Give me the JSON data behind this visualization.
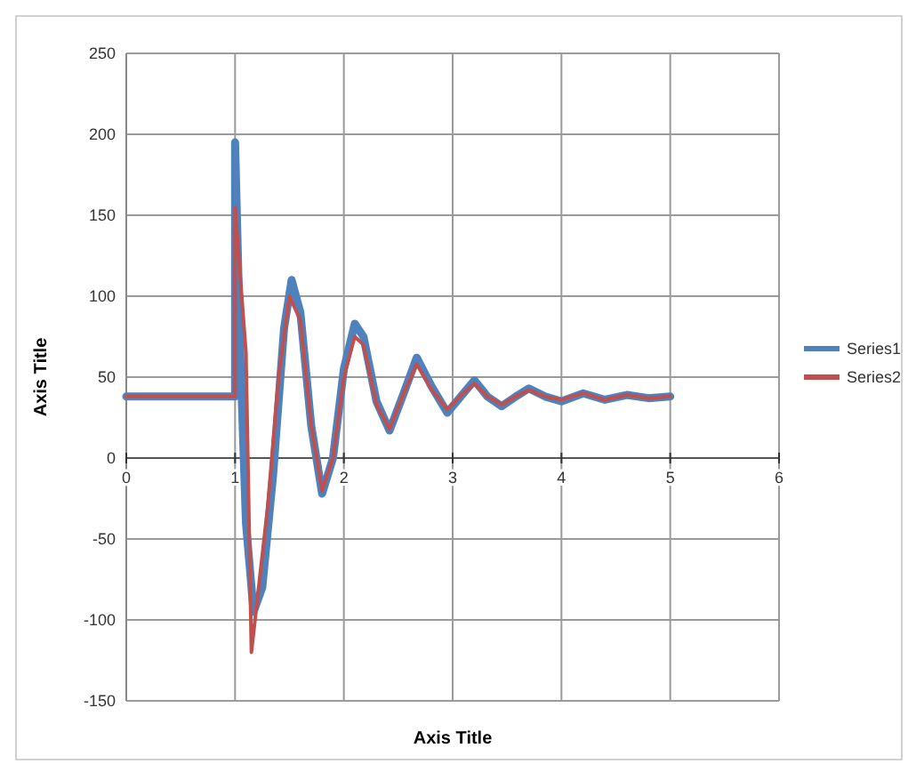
{
  "chart_data": {
    "type": "line",
    "xlabel": "Axis Title",
    "ylabel": "Axis Title",
    "xlim": [
      0,
      6
    ],
    "xticks": [
      0,
      1,
      2,
      3,
      4,
      5,
      6
    ],
    "ylim": [
      -150,
      250
    ],
    "yticks": [
      -150,
      -100,
      -50,
      0,
      50,
      100,
      150,
      200,
      250
    ],
    "grid": true,
    "legend": "right",
    "marker": "none",
    "line_style": "solid",
    "series": [
      {
        "name": "Series1",
        "color": "#4f81bd",
        "x": [
          0,
          0.5,
          1,
          1,
          1.05,
          1.1,
          1.17,
          1.25,
          1.35,
          1.45,
          1.52,
          1.6,
          1.7,
          1.8,
          1.9,
          2.0,
          2.1,
          2.18,
          2.3,
          2.42,
          2.55,
          2.67,
          2.8,
          2.95,
          3.1,
          3.2,
          3.32,
          3.45,
          3.58,
          3.7,
          3.85,
          4.0,
          4.2,
          4.4,
          4.6,
          4.8,
          5.0
        ],
        "values": [
          38,
          38,
          38,
          195,
          60,
          -40,
          -95,
          -80,
          -10,
          80,
          110,
          90,
          20,
          -22,
          0,
          55,
          83,
          75,
          35,
          17,
          40,
          62,
          45,
          28,
          40,
          48,
          38,
          32,
          38,
          43,
          38,
          35,
          40,
          36,
          39,
          37,
          38
        ]
      },
      {
        "name": "Series2",
        "color": "#c0504d",
        "x": [
          0,
          0.5,
          1,
          1,
          1.05,
          1.1,
          1.15,
          1.2,
          1.3,
          1.4,
          1.5,
          1.6,
          1.7,
          1.8,
          1.9,
          2.0,
          2.1,
          2.18,
          2.3,
          2.42,
          2.55,
          2.67,
          2.8,
          2.95,
          3.1,
          3.2,
          3.32,
          3.45,
          3.58,
          3.7,
          3.85,
          4.0,
          4.2,
          4.4,
          4.6,
          4.8,
          5.0
        ],
        "values": [
          38,
          38,
          38,
          155,
          110,
          65,
          -120,
          -90,
          -30,
          50,
          100,
          85,
          20,
          -20,
          0,
          50,
          75,
          70,
          33,
          18,
          40,
          58,
          43,
          30,
          40,
          46,
          38,
          33,
          38,
          42,
          38,
          36,
          40,
          36,
          39,
          37,
          38
        ]
      }
    ]
  }
}
